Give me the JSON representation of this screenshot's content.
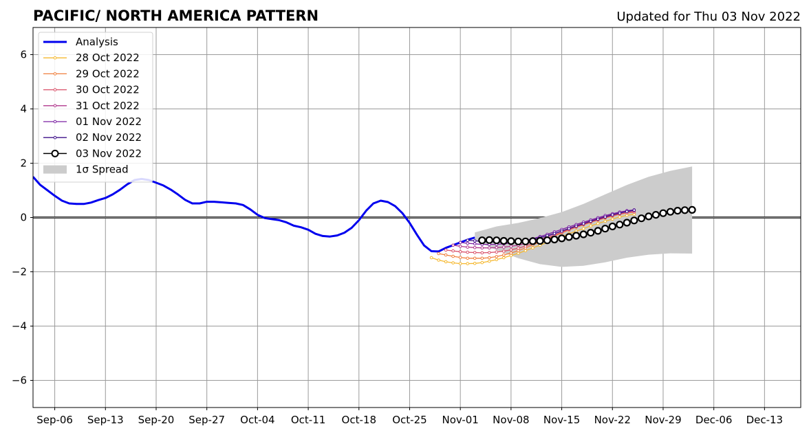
{
  "chart_data": {
    "type": "line",
    "title": "PACIFIC/ NORTH AMERICA PATTERN",
    "subtitle": "Updated for Thu 03 Nov 2022",
    "xlabel": "",
    "ylabel": "",
    "x_axis": "date",
    "xlim": [
      "2022-09-03",
      "2022-12-18"
    ],
    "ylim": [
      -7,
      7
    ],
    "x_ticks": [
      {
        "date": "2022-09-06",
        "label": "Sep-06"
      },
      {
        "date": "2022-09-13",
        "label": "Sep-13"
      },
      {
        "date": "2022-09-20",
        "label": "Sep-20"
      },
      {
        "date": "2022-09-27",
        "label": "Sep-27"
      },
      {
        "date": "2022-10-04",
        "label": "Oct-04"
      },
      {
        "date": "2022-10-11",
        "label": "Oct-11"
      },
      {
        "date": "2022-10-18",
        "label": "Oct-18"
      },
      {
        "date": "2022-10-25",
        "label": "Oct-25"
      },
      {
        "date": "2022-11-01",
        "label": "Nov-01"
      },
      {
        "date": "2022-11-08",
        "label": "Nov-08"
      },
      {
        "date": "2022-11-15",
        "label": "Nov-15"
      },
      {
        "date": "2022-11-22",
        "label": "Nov-22"
      },
      {
        "date": "2022-11-29",
        "label": "Nov-29"
      },
      {
        "date": "2022-12-06",
        "label": "Dec-06"
      },
      {
        "date": "2022-12-13",
        "label": "Dec-13"
      }
    ],
    "y_ticks": [
      {
        "value": 6,
        "label": "6"
      },
      {
        "value": 4,
        "label": "4"
      },
      {
        "value": 2,
        "label": "2"
      },
      {
        "value": 0,
        "label": "0"
      },
      {
        "value": -2,
        "label": "−2"
      },
      {
        "value": -4,
        "label": "−4"
      },
      {
        "value": -6,
        "label": "−6"
      }
    ],
    "grid": true,
    "zero_line": true,
    "legend_position": "top-left",
    "analysis": {
      "name": "Analysis",
      "color": "#0000ee",
      "dates": [
        "2022-09-03",
        "2022-09-04",
        "2022-09-05",
        "2022-09-06",
        "2022-09-07",
        "2022-09-08",
        "2022-09-09",
        "2022-09-10",
        "2022-09-11",
        "2022-09-12",
        "2022-09-13",
        "2022-09-14",
        "2022-09-15",
        "2022-09-16",
        "2022-09-17",
        "2022-09-18",
        "2022-09-19",
        "2022-09-20",
        "2022-09-21",
        "2022-09-22",
        "2022-09-23",
        "2022-09-24",
        "2022-09-25",
        "2022-09-26",
        "2022-09-27",
        "2022-09-28",
        "2022-09-29",
        "2022-09-30",
        "2022-10-01",
        "2022-10-02",
        "2022-10-03",
        "2022-10-04",
        "2022-10-05",
        "2022-10-06",
        "2022-10-07",
        "2022-10-08",
        "2022-10-09",
        "2022-10-10",
        "2022-10-11",
        "2022-10-12",
        "2022-10-13",
        "2022-10-14",
        "2022-10-15",
        "2022-10-16",
        "2022-10-17",
        "2022-10-18",
        "2022-10-19",
        "2022-10-20",
        "2022-10-21",
        "2022-10-22",
        "2022-10-23",
        "2022-10-24",
        "2022-10-25",
        "2022-10-26",
        "2022-10-27",
        "2022-10-28",
        "2022-10-29",
        "2022-10-30",
        "2022-10-31",
        "2022-11-01",
        "2022-11-02",
        "2022-11-03"
      ],
      "values": [
        1.5,
        1.2,
        1.0,
        0.8,
        0.62,
        0.52,
        0.5,
        0.5,
        0.55,
        0.64,
        0.72,
        0.85,
        1.02,
        1.22,
        1.38,
        1.42,
        1.38,
        1.28,
        1.18,
        1.03,
        0.85,
        0.65,
        0.52,
        0.52,
        0.58,
        0.58,
        0.56,
        0.54,
        0.52,
        0.46,
        0.3,
        0.1,
        -0.02,
        -0.06,
        -0.1,
        -0.18,
        -0.3,
        -0.36,
        -0.45,
        -0.6,
        -0.68,
        -0.7,
        -0.66,
        -0.56,
        -0.38,
        -0.1,
        0.25,
        0.52,
        0.62,
        0.57,
        0.42,
        0.16,
        -0.2,
        -0.63,
        -1.03,
        -1.24,
        -1.25,
        -1.12,
        -1.02,
        -0.92,
        -0.82,
        -0.74
      ]
    },
    "forecasts": [
      {
        "name": "28 Oct 2022",
        "color": "#f5b82e",
        "start": "2022-10-28",
        "values": [
          -1.48,
          -1.57,
          -1.63,
          -1.67,
          -1.7,
          -1.7,
          -1.69,
          -1.66,
          -1.61,
          -1.55,
          -1.48,
          -1.4,
          -1.32,
          -1.22,
          -1.12,
          -1.02,
          -0.92,
          -0.8,
          -0.7,
          -0.6,
          -0.5,
          -0.41,
          -0.31,
          -0.22,
          -0.14,
          -0.06,
          0.02,
          0.08,
          0.12
        ]
      },
      {
        "name": "29 Oct 2022",
        "color": "#f07f3c",
        "start": "2022-10-29",
        "values": [
          -1.33,
          -1.38,
          -1.43,
          -1.47,
          -1.5,
          -1.5,
          -1.5,
          -1.48,
          -1.44,
          -1.38,
          -1.31,
          -1.22,
          -1.12,
          -1.01,
          -0.9,
          -0.79,
          -0.68,
          -0.57,
          -0.46,
          -0.36,
          -0.27,
          -0.18,
          -0.1,
          -0.02,
          0.05,
          0.12,
          0.17,
          0.2
        ]
      },
      {
        "name": "30 Oct 2022",
        "color": "#d94f68",
        "start": "2022-10-30",
        "values": [
          -1.2,
          -1.23,
          -1.26,
          -1.28,
          -1.29,
          -1.3,
          -1.29,
          -1.27,
          -1.24,
          -1.19,
          -1.13,
          -1.05,
          -0.96,
          -0.86,
          -0.76,
          -0.65,
          -0.54,
          -0.44,
          -0.34,
          -0.25,
          -0.16,
          -0.08,
          0.0,
          0.07,
          0.13,
          0.18,
          0.21
        ]
      },
      {
        "name": "31 Oct 2022",
        "color": "#b0368c",
        "start": "2022-10-31",
        "values": [
          -1.02,
          -1.06,
          -1.09,
          -1.11,
          -1.12,
          -1.12,
          -1.11,
          -1.09,
          -1.06,
          -1.02,
          -0.96,
          -0.88,
          -0.8,
          -0.7,
          -0.6,
          -0.5,
          -0.4,
          -0.3,
          -0.21,
          -0.12,
          -0.04,
          0.04,
          0.11,
          0.17,
          0.22,
          0.25
        ]
      },
      {
        "name": "01 Nov 2022",
        "color": "#7a1fa2",
        "start": "2022-11-01",
        "values": [
          -0.92,
          -0.95,
          -0.97,
          -0.99,
          -0.99,
          -0.99,
          -0.97,
          -0.94,
          -0.9,
          -0.85,
          -0.78,
          -0.7,
          -0.62,
          -0.53,
          -0.44,
          -0.35,
          -0.26,
          -0.17,
          -0.09,
          -0.01,
          0.07,
          0.14,
          0.2,
          0.25,
          0.28
        ]
      },
      {
        "name": "02 Nov 2022",
        "color": "#3d0f8a",
        "start": "2022-11-02",
        "values": [
          -0.84,
          -0.86,
          -0.88,
          -0.9,
          -0.91,
          -0.91,
          -0.9,
          -0.88,
          -0.85,
          -0.8,
          -0.74,
          -0.67,
          -0.59,
          -0.5,
          -0.41,
          -0.32,
          -0.23,
          -0.14,
          -0.06,
          0.02,
          0.1,
          0.16,
          0.22,
          0.27
        ]
      }
    ],
    "current_forecast": {
      "name": "03 Nov 2022",
      "color": "#000000",
      "marker_fill": "#ffffff",
      "start": "2022-11-04",
      "values": [
        -0.84,
        -0.83,
        -0.84,
        -0.86,
        -0.87,
        -0.88,
        -0.88,
        -0.87,
        -0.86,
        -0.84,
        -0.81,
        -0.77,
        -0.72,
        -0.67,
        -0.62,
        -0.56,
        -0.49,
        -0.41,
        -0.33,
        -0.26,
        -0.19,
        -0.11,
        -0.03,
        0.04,
        0.1,
        0.16,
        0.21,
        0.25,
        0.27,
        0.28
      ]
    },
    "spread": {
      "name": "1σ Spread",
      "color": "#cccccc",
      "dates": [
        "2022-11-03",
        "2022-11-06",
        "2022-11-09",
        "2022-11-12",
        "2022-11-15",
        "2022-11-18",
        "2022-11-21",
        "2022-11-24",
        "2022-11-27",
        "2022-11-30",
        "2022-12-03"
      ],
      "upper": [
        -0.55,
        -0.33,
        -0.2,
        -0.02,
        0.2,
        0.5,
        0.85,
        1.2,
        1.5,
        1.72,
        1.88
      ],
      "lower": [
        -0.84,
        -1.2,
        -1.5,
        -1.72,
        -1.82,
        -1.78,
        -1.65,
        -1.48,
        -1.37,
        -1.32,
        -1.33
      ]
    }
  }
}
